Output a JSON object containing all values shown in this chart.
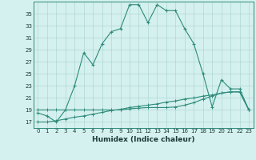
{
  "xlabel": "Humidex (Indice chaleur)",
  "x": [
    0,
    1,
    2,
    3,
    4,
    5,
    6,
    7,
    8,
    9,
    10,
    11,
    12,
    13,
    14,
    15,
    16,
    17,
    18,
    19,
    20,
    21,
    22,
    23
  ],
  "line1": [
    18.5,
    18.0,
    17.0,
    19.0,
    23.0,
    28.5,
    26.5,
    30.0,
    32.0,
    32.5,
    36.5,
    36.5,
    33.5,
    36.5,
    35.5,
    35.5,
    32.5,
    30.0,
    25.0,
    19.5,
    24.0,
    22.5,
    22.5,
    19.0
  ],
  "line2": [
    19.0,
    19.0,
    19.0,
    19.0,
    19.0,
    19.0,
    19.0,
    19.0,
    19.0,
    19.0,
    19.2,
    19.3,
    19.4,
    19.4,
    19.4,
    19.5,
    19.8,
    20.2,
    20.8,
    21.3,
    21.8,
    22.0,
    22.0,
    19.0
  ],
  "line3": [
    17.0,
    17.0,
    17.2,
    17.5,
    17.8,
    18.0,
    18.3,
    18.6,
    18.9,
    19.1,
    19.4,
    19.6,
    19.8,
    20.0,
    20.3,
    20.5,
    20.8,
    21.0,
    21.3,
    21.5,
    21.8,
    22.0,
    22.0,
    19.0
  ],
  "line_color": "#2e8b7a",
  "bg_color": "#d4f0ef",
  "grid_color": "#afd8d4",
  "ylim": [
    16.0,
    37.0
  ],
  "xlim": [
    -0.5,
    23.5
  ],
  "yticks": [
    17,
    19,
    21,
    23,
    25,
    27,
    29,
    31,
    33,
    35
  ],
  "xticks": [
    0,
    1,
    2,
    3,
    4,
    5,
    6,
    7,
    8,
    9,
    10,
    11,
    12,
    13,
    14,
    15,
    16,
    17,
    18,
    19,
    20,
    21,
    22,
    23
  ],
  "figsize": [
    3.2,
    2.0
  ],
  "dpi": 100,
  "tick_fontsize": 5.0,
  "xlabel_fontsize": 6.5
}
